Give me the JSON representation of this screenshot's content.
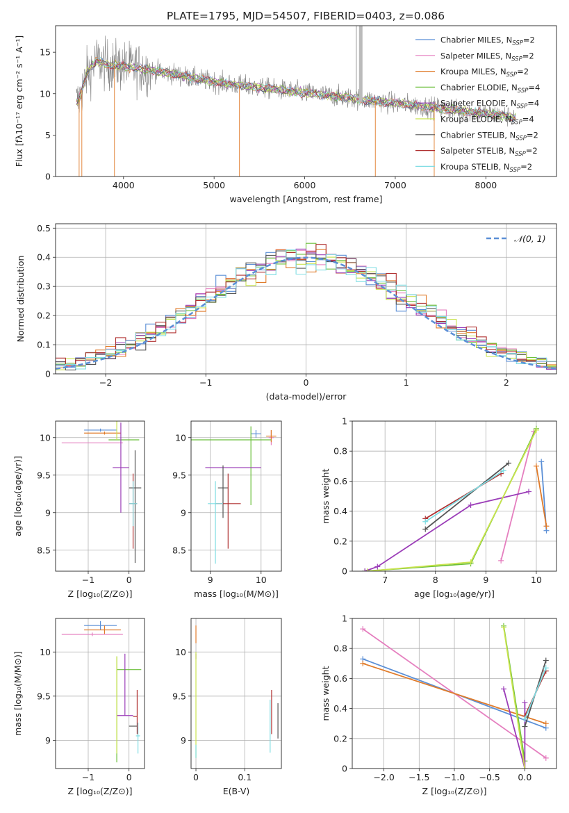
{
  "figure": {
    "title": "PLATE=1795, MJD=54507, FIBERID=0403, z=0.086"
  },
  "colors": {
    "blue": "#5B8FD6",
    "pink": "#E57FBF",
    "orange": "#E07B2A",
    "green": "#6BBF3A",
    "purple": "#9B3DB8",
    "lime": "#C9E34E",
    "darkgray": "#555555",
    "red": "#B03030",
    "cyan": "#7FDDE3",
    "data": "#808080",
    "normal": "#5B8FD6"
  },
  "chart_data": [
    {
      "type": "line",
      "id": "spectrum",
      "title": "PLATE=1795, MJD=54507, FIBERID=0403, z=0.086",
      "xlabel": "wavelength [Angstrom, rest frame]",
      "ylabel": "Flux [fλ10⁻¹⁷ erg cm⁻² s⁻¹ A⁻¹]",
      "xlim": [
        3250,
        8780
      ],
      "ylim": [
        0,
        18.2
      ],
      "xticks": [
        4000,
        5000,
        6000,
        7000,
        8000
      ],
      "yticks": [
        0,
        5,
        10,
        15
      ],
      "grid": false,
      "legend_position": "top-right",
      "continuum_x": [
        3500,
        3600,
        3700,
        3800,
        4000,
        4200,
        4500,
        4800,
        5200,
        5600,
        6000,
        6400,
        6800,
        7200,
        7600,
        8000,
        8300
      ],
      "continuum_y": [
        9.0,
        12.5,
        14.0,
        13.5,
        13.3,
        13.0,
        12.5,
        11.8,
        11.1,
        10.6,
        10.1,
        9.6,
        9.1,
        8.6,
        8.1,
        7.6,
        7.2
      ],
      "series": [
        {
          "name": "Chabrier MILES, N_SSP=2",
          "color": "#5B8FD6"
        },
        {
          "name": "Salpeter MILES, N_SSP=2",
          "color": "#E57FBF"
        },
        {
          "name": "Kroupa MILES, N_SSP=2",
          "color": "#E07B2A"
        },
        {
          "name": "Chabrier ELODIE, N_SSP=4",
          "color": "#6BBF3A"
        },
        {
          "name": "Salpeter ELODIE, N_SSP=4",
          "color": "#9B3DB8"
        },
        {
          "name": "Kroupa ELODIE, N_SSP=4",
          "color": "#C9E34E"
        },
        {
          "name": "Chabrier STELIB, N_SSP=2",
          "color": "#555555"
        },
        {
          "name": "Salpeter STELIB, N_SSP=2",
          "color": "#B03030"
        },
        {
          "name": "Kroupa STELIB, N_SSP=2",
          "color": "#7FDDE3"
        }
      ],
      "legend_labels": [
        {
          "main": "Chabrier MILES, N",
          "sub": "SSP",
          "tail": "=2"
        },
        {
          "main": "Salpeter MILES, N",
          "sub": "SSP",
          "tail": "=2"
        },
        {
          "main": "Kroupa MILES, N",
          "sub": "SSP",
          "tail": "=2"
        },
        {
          "main": "Chabrier ELODIE, N",
          "sub": "SSP",
          "tail": "=4"
        },
        {
          "main": "Salpeter ELODIE, N",
          "sub": "SSP",
          "tail": "=4"
        },
        {
          "main": "Kroupa ELODIE, N",
          "sub": "SSP",
          "tail": "=4"
        },
        {
          "main": "Chabrier STELIB, N",
          "sub": "SSP",
          "tail": "=2"
        },
        {
          "main": "Salpeter STELIB, N",
          "sub": "SSP",
          "tail": "=2"
        },
        {
          "main": "Kroupa STELIB, N",
          "sub": "SSP",
          "tail": "=2"
        }
      ]
    },
    {
      "type": "step",
      "id": "residuals",
      "xlabel": "(data-model)/error",
      "ylabel": "Normed distribution",
      "xlim": [
        -2.5,
        2.5
      ],
      "ylim": [
        0,
        0.515
      ],
      "xticks": [
        -2,
        -1,
        0,
        1,
        2
      ],
      "yticks": [
        0.0,
        0.1,
        0.2,
        0.3,
        0.4,
        0.5
      ],
      "grid": true,
      "legend_position": "top-right",
      "legend_label": "𝒩(0, 1)",
      "bin_width": 0.1,
      "histogram_colors": [
        "#5B8FD6",
        "#E57FBF",
        "#E07B2A",
        "#6BBF3A",
        "#9B3DB8",
        "#C9E34E",
        "#555555",
        "#B03030",
        "#7FDDE3"
      ],
      "normal_curve": {
        "mean": 0,
        "sigma": 1
      }
    },
    {
      "type": "errorbar",
      "id": "age-vs-Z",
      "xlabel": "Z [log₁₀(Z/Z⊙)]",
      "ylabel": "age  [log₁₀(age/yr)]",
      "xlim": [
        -1.8,
        0.38
      ],
      "ylim": [
        8.22,
        10.22
      ],
      "xticks": [
        -1,
        0
      ],
      "yticks": [
        8.5,
        9.0,
        9.5,
        10.0
      ],
      "grid": true,
      "points": [
        {
          "x": -0.7,
          "y": 10.1,
          "xerr": [
            0.4,
            0.4
          ],
          "yerr": [
            0.02,
            0.02
          ],
          "color": "#5B8FD6"
        },
        {
          "x": -0.6,
          "y": 10.06,
          "xerr": [
            0.5,
            0.4
          ],
          "yerr": [
            0.02,
            0.02
          ],
          "color": "#E07B2A"
        },
        {
          "x": -0.9,
          "y": 9.93,
          "xerr": [
            0.75,
            0.75
          ],
          "yerr": [
            0.0,
            0.0
          ],
          "color": "#E57FBF"
        },
        {
          "x": -0.05,
          "y": 9.97,
          "xerr": [
            0.45,
            0.3
          ],
          "yerr": [
            0.0,
            0.0
          ],
          "color": "#6BBF3A"
        },
        {
          "x": -0.2,
          "y": 9.6,
          "xerr": [
            0.2,
            0.2
          ],
          "yerr": [
            0.6,
            0.6
          ],
          "color": "#9B3DB8"
        },
        {
          "x": -0.3,
          "y": 9.97,
          "xerr": [
            0.0,
            0.0
          ],
          "yerr": [
            0.0,
            1.4
          ],
          "color": "#C9E34E"
        },
        {
          "x": 0.15,
          "y": 9.33,
          "xerr": [
            0.15,
            0.15
          ],
          "yerr": [
            1.0,
            0.5
          ],
          "color": "#555555"
        },
        {
          "x": 0.1,
          "y": 9.12,
          "xerr": [
            0.1,
            0.1
          ],
          "yerr": [
            0.6,
            0.4
          ],
          "color": "#B03030"
        },
        {
          "x": 0.1,
          "y": 9.12,
          "xerr": [
            0.1,
            0.1
          ],
          "yerr": [
            0.3,
            0.3
          ],
          "color": "#7FDDE3"
        }
      ]
    },
    {
      "type": "errorbar",
      "id": "age-vs-mass",
      "xlabel": "mass [log₁₀(M/M⊙)]",
      "ylabel": "",
      "xlim": [
        8.62,
        10.4
      ],
      "ylim": [
        8.22,
        10.22
      ],
      "xticks": [
        9,
        10
      ],
      "yticks": [
        8.5,
        9.0,
        9.5,
        10.0
      ],
      "grid": true,
      "points": [
        {
          "x": 9.9,
          "y": 10.05,
          "xerr": [
            0.1,
            0.1
          ],
          "yerr": [
            0.05,
            0.05
          ],
          "color": "#5B8FD6"
        },
        {
          "x": 10.2,
          "y": 10.0,
          "xerr": [
            0.05,
            0.05
          ],
          "yerr": [
            0.1,
            0.1
          ],
          "color": "#E57FBF"
        },
        {
          "x": 10.2,
          "y": 10.02,
          "xerr": [
            0.1,
            0.1
          ],
          "yerr": [
            0.08,
            0.08
          ],
          "color": "#E07B2A"
        },
        {
          "x": 9.4,
          "y": 9.97,
          "xerr": [
            0.8,
            0.8
          ],
          "yerr": [
            0.0,
            0.0
          ],
          "color": "#6BBF3A"
        },
        {
          "x": 9.8,
          "y": 9.6,
          "xerr": [
            0.0,
            0.0
          ],
          "yerr": [
            0.5,
            0.55
          ],
          "color": "#6BBF3A"
        },
        {
          "x": 9.3,
          "y": 9.6,
          "xerr": [
            0.4,
            0.7
          ],
          "yerr": [
            0.0,
            0.0
          ],
          "color": "#9B3DB8"
        },
        {
          "x": 9.25,
          "y": 9.33,
          "xerr": [
            0.1,
            0.1
          ],
          "yerr": [
            0.4,
            0.3
          ],
          "color": "#555555"
        },
        {
          "x": 9.35,
          "y": 9.12,
          "xerr": [
            0.25,
            0.25
          ],
          "yerr": [
            0.6,
            0.4
          ],
          "color": "#B03030"
        },
        {
          "x": 9.1,
          "y": 9.12,
          "xerr": [
            0.15,
            0.15
          ],
          "yerr": [
            0.8,
            0.3
          ],
          "color": "#7FDDE3"
        }
      ]
    },
    {
      "type": "line",
      "id": "weight-vs-age",
      "xlabel": "age  [log₁₀(age/yr)]",
      "ylabel": "mass weight",
      "xlim": [
        6.35,
        10.4
      ],
      "ylim": [
        0,
        1.0
      ],
      "xticks": [
        7,
        8,
        9,
        10
      ],
      "yticks": [
        0.0,
        0.2,
        0.4,
        0.6,
        0.8,
        1.0
      ],
      "grid": true,
      "series": [
        {
          "color": "#5B8FD6",
          "x": [
            10.1,
            10.2
          ],
          "y": [
            0.73,
            0.27
          ]
        },
        {
          "color": "#E57FBF",
          "x": [
            9.3,
            9.95
          ],
          "y": [
            0.07,
            0.93
          ]
        },
        {
          "color": "#E07B2A",
          "x": [
            10.0,
            10.2
          ],
          "y": [
            0.7,
            0.3
          ]
        },
        {
          "color": "#6BBF3A",
          "x": [
            6.6,
            8.7,
            10.0
          ],
          "y": [
            0.0,
            0.05,
            0.95
          ]
        },
        {
          "color": "#9B3DB8",
          "x": [
            6.6,
            6.85,
            8.7,
            9.85
          ],
          "y": [
            0.0,
            0.03,
            0.44,
            0.53
          ]
        },
        {
          "color": "#C9E34E",
          "x": [
            6.65,
            8.7,
            10.0
          ],
          "y": [
            0.0,
            0.06,
            0.94
          ]
        },
        {
          "color": "#555555",
          "x": [
            7.8,
            9.45
          ],
          "y": [
            0.28,
            0.72
          ]
        },
        {
          "color": "#B03030",
          "x": [
            7.8,
            9.3
          ],
          "y": [
            0.35,
            0.65
          ]
        },
        {
          "color": "#7FDDE3",
          "x": [
            7.8,
            9.35
          ],
          "y": [
            0.33,
            0.67
          ]
        }
      ]
    },
    {
      "type": "errorbar",
      "id": "mass-vs-Z",
      "xlabel": "Z [log₁₀(Z/Z⊙)]",
      "ylabel": "mass [log₁₀(M/M⊙)]",
      "xlim": [
        -1.8,
        0.38
      ],
      "ylim": [
        8.68,
        10.38
      ],
      "xticks": [
        -1,
        0
      ],
      "yticks": [
        9.0,
        9.5,
        10.0
      ],
      "grid": true,
      "points": [
        {
          "x": -0.7,
          "y": 10.3,
          "xerr": [
            0.4,
            0.4
          ],
          "yerr": [
            0.05,
            0.05
          ],
          "color": "#5B8FD6"
        },
        {
          "x": -0.6,
          "y": 10.25,
          "xerr": [
            0.5,
            0.4
          ],
          "yerr": [
            0.05,
            0.05
          ],
          "color": "#E07B2A"
        },
        {
          "x": -0.9,
          "y": 10.2,
          "xerr": [
            0.75,
            0.75
          ],
          "yerr": [
            0.02,
            0.02
          ],
          "color": "#E57FBF"
        },
        {
          "x": -0.1,
          "y": 9.8,
          "xerr": [
            0.2,
            0.4
          ],
          "yerr": [
            0.0,
            0.0
          ],
          "color": "#6BBF3A"
        },
        {
          "x": -0.3,
          "y": 9.35,
          "xerr": [
            0.0,
            0.0
          ],
          "yerr": [
            0.6,
            0.6
          ],
          "color": "#6BBF3A"
        },
        {
          "x": -0.1,
          "y": 9.28,
          "xerr": [
            0.2,
            0.2
          ],
          "yerr": [
            0.0,
            0.7
          ],
          "color": "#9B3DB8"
        },
        {
          "x": -0.3,
          "y": 9.35,
          "xerr": [
            0.0,
            0.0
          ],
          "yerr": [
            0.5,
            0.6
          ],
          "color": "#C9E34E"
        },
        {
          "x": 0.1,
          "y": 9.16,
          "xerr": [
            0.1,
            0.1
          ],
          "yerr": [
            0.0,
            0.0
          ],
          "color": "#555555"
        },
        {
          "x": 0.2,
          "y": 9.27,
          "xerr": [
            0.1,
            0.0
          ],
          "yerr": [
            0.2,
            0.3
          ],
          "color": "#B03030"
        },
        {
          "x": 0.22,
          "y": 9.05,
          "xerr": [
            0.05,
            0.05
          ],
          "yerr": [
            0.2,
            0.15
          ],
          "color": "#7FDDE3"
        }
      ]
    },
    {
      "type": "errorbar",
      "id": "mass-vs-ebv",
      "xlabel": "E(B-V)",
      "ylabel": "",
      "xlim": [
        -0.01,
        0.175
      ],
      "ylim": [
        8.68,
        10.38
      ],
      "xticks": [
        0.0,
        0.1
      ],
      "yticks": [
        9.0,
        9.5,
        10.0
      ],
      "grid": true,
      "points": [
        {
          "x": 0.0,
          "y": 10.2,
          "xerr": [
            0.0,
            0.0
          ],
          "yerr": [
            0.1,
            0.1
          ],
          "color": "#E07B2A"
        },
        {
          "x": 0.0,
          "y": 9.95,
          "xerr": [
            0.0,
            0.0
          ],
          "yerr": [
            0.03,
            0.03
          ],
          "color": "#9B3DB8"
        },
        {
          "x": 0.0,
          "y": 9.4,
          "xerr": [
            0.0,
            0.0
          ],
          "yerr": [
            0.6,
            0.6
          ],
          "color": "#C9E34E"
        },
        {
          "x": 0.0,
          "y": 8.9,
          "xerr": [
            0.0,
            0.0
          ],
          "yerr": [
            0.1,
            0.05
          ],
          "color": "#7FDDE3"
        },
        {
          "x": 0.155,
          "y": 9.27,
          "xerr": [
            0.0,
            0.0
          ],
          "yerr": [
            0.2,
            0.3
          ],
          "color": "#B03030"
        },
        {
          "x": 0.152,
          "y": 9.16,
          "xerr": [
            0.0,
            0.0
          ],
          "yerr": [
            0.3,
            0.3
          ],
          "color": "#7FDDE3"
        },
        {
          "x": 0.168,
          "y": 9.22,
          "xerr": [
            0.0,
            0.0
          ],
          "yerr": [
            0.2,
            0.2
          ],
          "color": "#555555"
        }
      ]
    },
    {
      "type": "line",
      "id": "weight-vs-Z",
      "xlabel": "Z [log₁₀(Z/Z⊙)]",
      "ylabel": "mass weight",
      "xlim": [
        -2.45,
        0.45
      ],
      "ylim": [
        0,
        1.0
      ],
      "xticks": [
        -2.0,
        -1.5,
        -1.0,
        -0.5,
        0.0
      ],
      "xticklabels": [
        "−2.0",
        "−1.5",
        "−1.0",
        "−0.5",
        "0.0"
      ],
      "yticks": [
        0.0,
        0.2,
        0.4,
        0.6,
        0.8,
        1.0
      ],
      "grid": true,
      "series": [
        {
          "color": "#5B8FD6",
          "x": [
            -2.3,
            0.3
          ],
          "y": [
            0.73,
            0.27
          ]
        },
        {
          "color": "#E57FBF",
          "x": [
            -2.3,
            0.3
          ],
          "y": [
            0.93,
            0.07
          ]
        },
        {
          "color": "#E07B2A",
          "x": [
            -2.3,
            0.3
          ],
          "y": [
            0.7,
            0.3
          ]
        },
        {
          "color": "#6BBF3A",
          "x": [
            -0.3,
            0.0
          ],
          "y": [
            0.95,
            0.05
          ]
        },
        {
          "color": "#9B3DB8",
          "x": [
            -0.3,
            0.0,
            0.0
          ],
          "y": [
            0.53,
            0.0,
            0.44
          ]
        },
        {
          "color": "#C9E34E",
          "x": [
            -0.3,
            0.0
          ],
          "y": [
            0.94,
            0.0
          ]
        },
        {
          "color": "#555555",
          "x": [
            0.0,
            0.3
          ],
          "y": [
            0.28,
            0.72
          ]
        },
        {
          "color": "#B03030",
          "x": [
            0.0,
            0.3
          ],
          "y": [
            0.35,
            0.65
          ]
        },
        {
          "color": "#7FDDE3",
          "x": [
            0.0,
            0.3
          ],
          "y": [
            0.33,
            0.67
          ]
        }
      ]
    }
  ]
}
